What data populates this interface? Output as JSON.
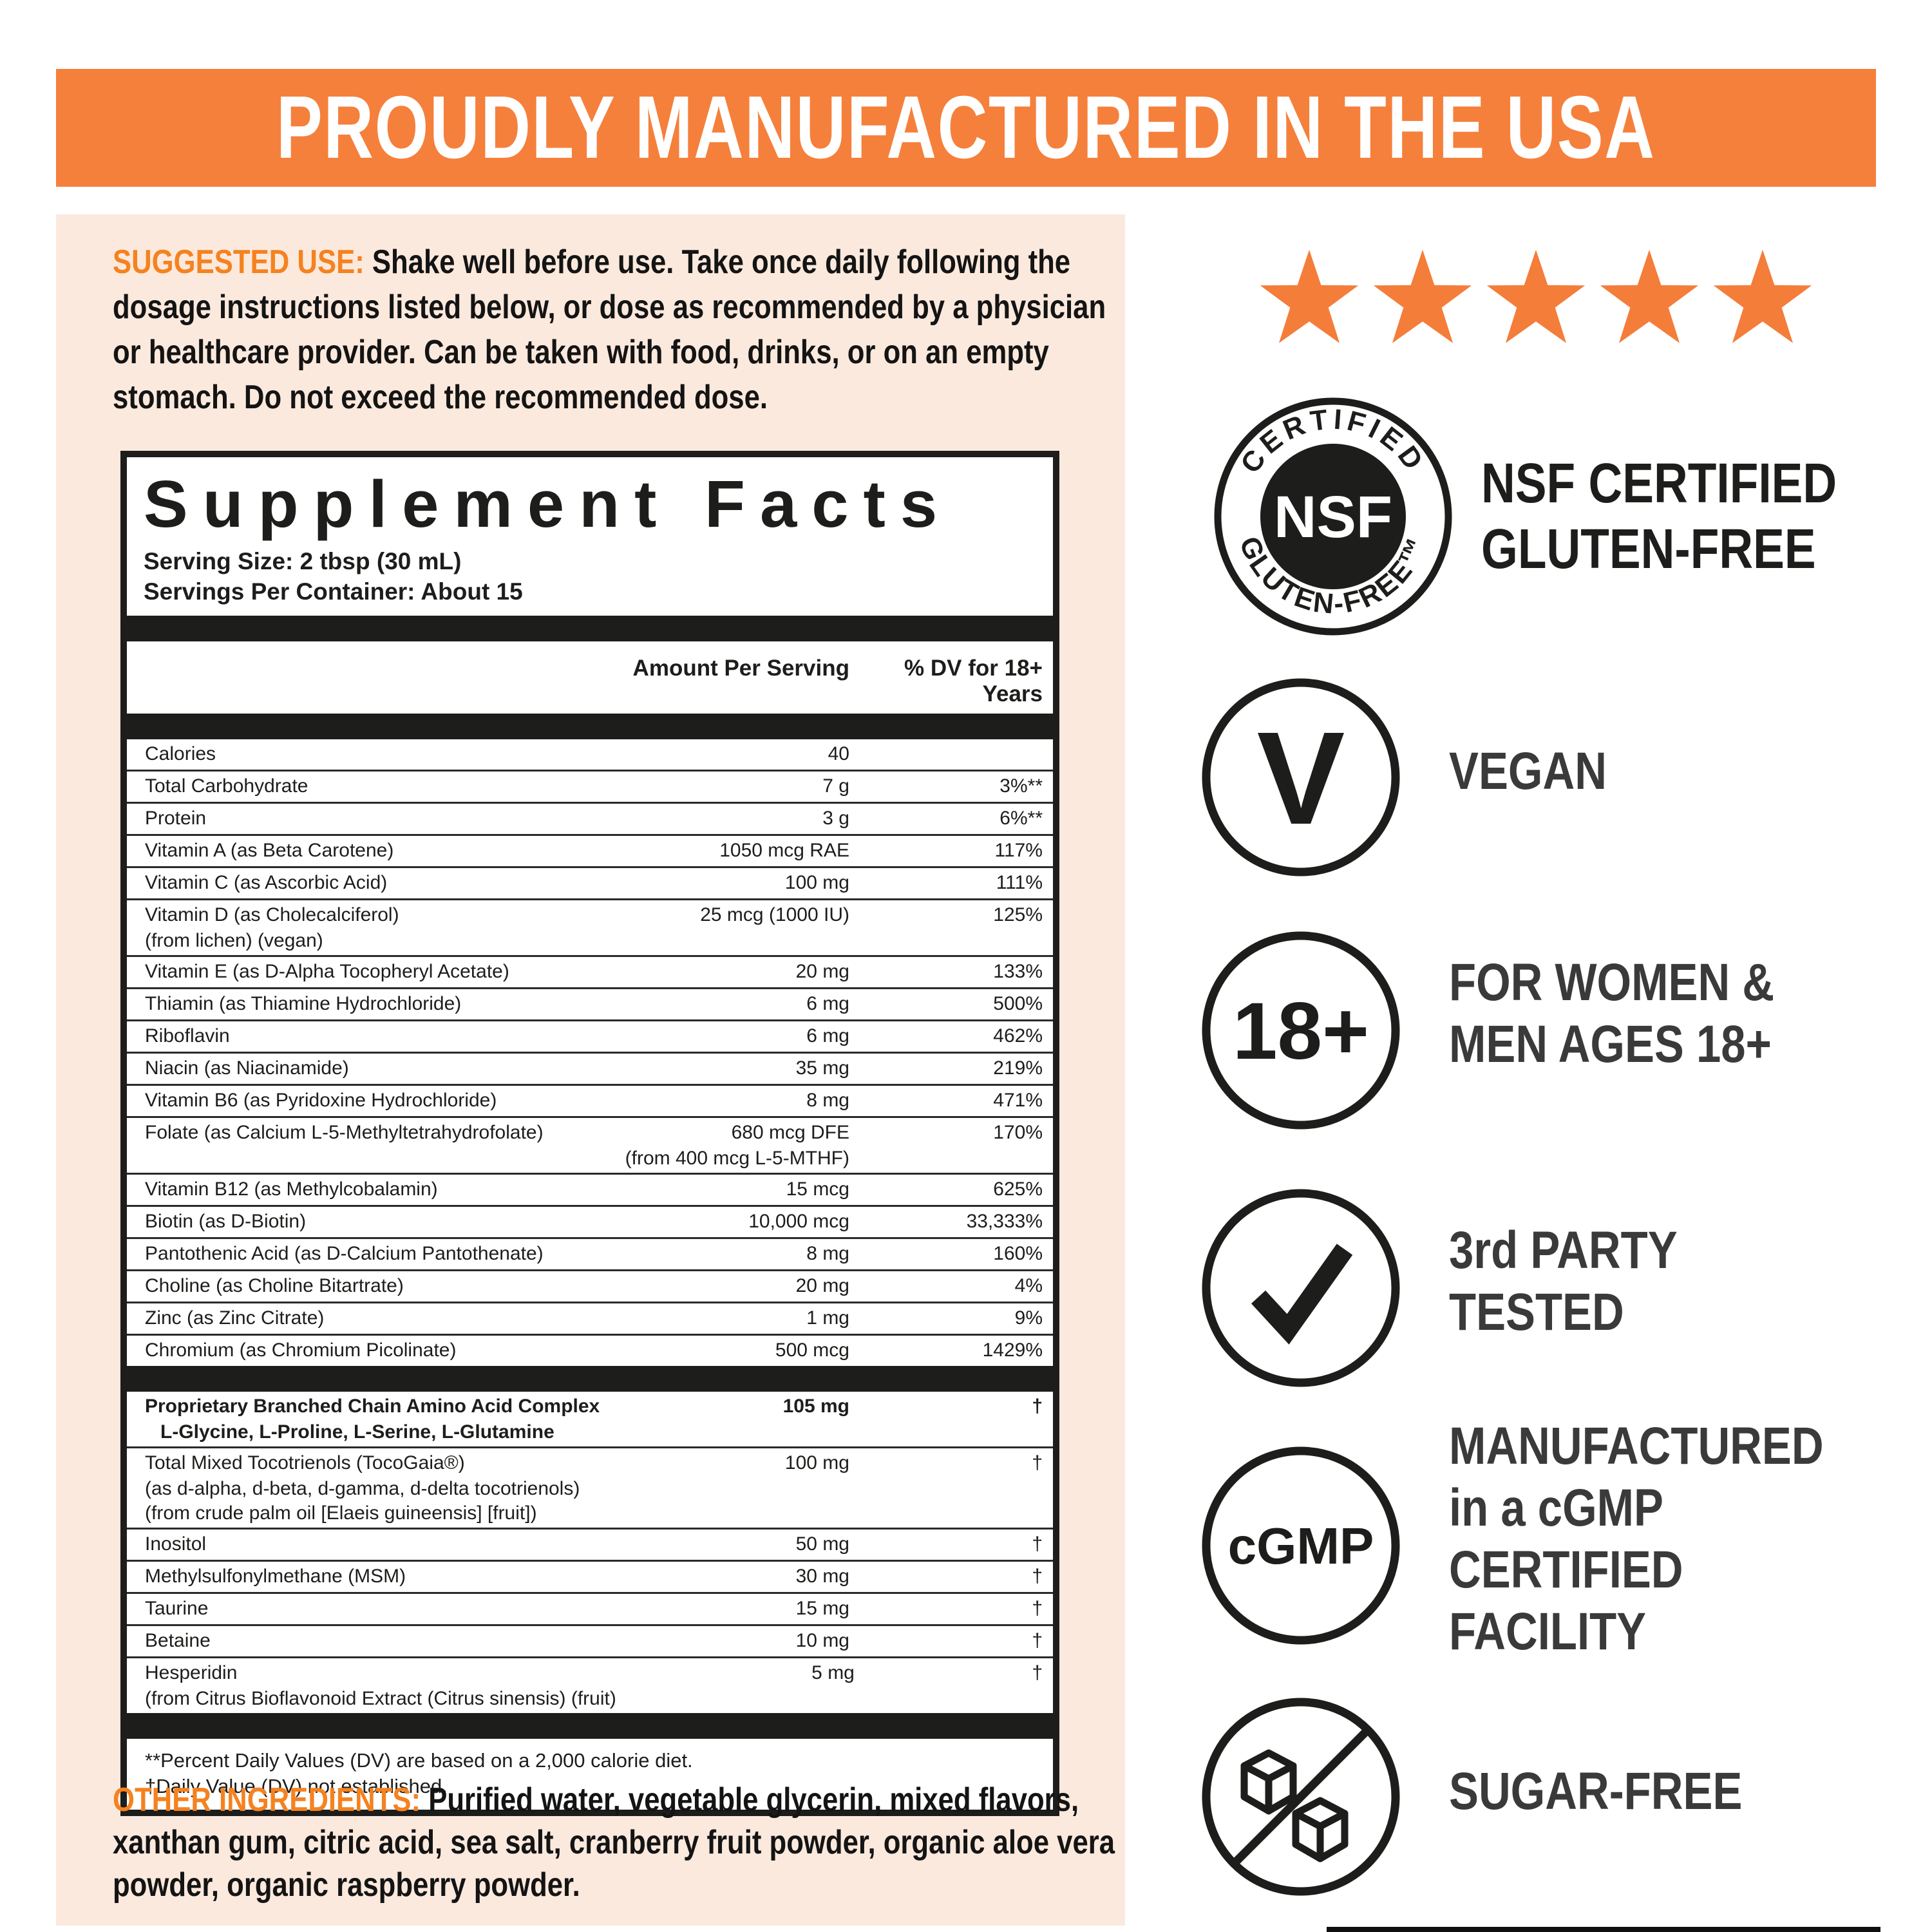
{
  "banner": {
    "text": "PROUDLY MANUFACTURED IN THE USA"
  },
  "colors": {
    "banner_orange": "#f5803c",
    "heading_orange": "#f5821f",
    "star_orange": "#f47d3a",
    "peach_background": "#fce9dd",
    "ink": "#1d1d1b"
  },
  "suggested_use": {
    "label": "SUGGESTED USE:",
    "text": " Shake well before use. Take once daily following the dosage instructions listed below, or dose as recommended by a physician or healthcare provider. Can be taken with food, drinks, or on an empty stomach. Do  not exceed the recommended dose."
  },
  "supplement_facts": {
    "title": "Supplement Facts",
    "serving_size": "Serving Size: 2 tbsp (30 mL)",
    "servings_per_container": "Servings Per Container: About 15",
    "col_amount": "Amount Per Serving",
    "col_dv": "% DV for 18+ Years",
    "rows": [
      {
        "name": "Calories",
        "amount": "40",
        "dv": ""
      },
      {
        "name": "Total Carbohydrate",
        "amount": "7 g",
        "dv": "3%**"
      },
      {
        "name": "Protein",
        "amount": "3 g",
        "dv": "6%**"
      },
      {
        "name": "Vitamin A (as Beta Carotene)",
        "amount": "1050 mcg RAE",
        "dv": "117%"
      },
      {
        "name": "Vitamin C (as Ascorbic Acid)",
        "amount": "100 mg",
        "dv": "111%"
      },
      {
        "name": "Vitamin D (as Cholecalciferol)",
        "name_subs": [
          "(from lichen) (vegan)"
        ],
        "amount": "25 mcg (1000 IU)",
        "dv": "125%"
      },
      {
        "name": "Vitamin E (as D-Alpha Tocopheryl Acetate)",
        "amount": "20 mg",
        "dv": "133%"
      },
      {
        "name": "Thiamin (as Thiamine Hydrochloride)",
        "amount": "6 mg",
        "dv": "500%"
      },
      {
        "name": "Riboflavin",
        "amount": "6 mg",
        "dv": "462%"
      },
      {
        "name": "Niacin (as Niacinamide)",
        "amount": "35 mg",
        "dv": "219%"
      },
      {
        "name": "Vitamin B6 (as Pyridoxine Hydrochloride)",
        "amount": "8 mg",
        "dv": "471%"
      },
      {
        "name": "Folate (as Calcium L-5-Methyltetrahydrofolate)",
        "amount": "680 mcg DFE",
        "amount_sub": "(from 400 mcg L-5-MTHF)",
        "dv": "170%"
      },
      {
        "name": "Vitamin B12 (as Methylcobalamin)",
        "amount": "15 mcg",
        "dv": "625%"
      },
      {
        "name": "Biotin (as D-Biotin)",
        "amount": "10,000 mcg",
        "dv": "33,333%"
      },
      {
        "name": "Pantothenic Acid (as D-Calcium Pantothenate)",
        "amount": "8 mg",
        "dv": "160%"
      },
      {
        "name": "Choline (as Choline Bitartrate)",
        "amount": "20 mg",
        "dv": "4%"
      },
      {
        "name": "Zinc (as Zinc Citrate)",
        "amount": "1 mg",
        "dv": "9%"
      },
      {
        "name": "Chromium (as Chromium Picolinate)",
        "amount": "500 mcg",
        "dv": "1429%"
      },
      {
        "type": "bar"
      },
      {
        "name": "Proprietary Branched Chain Amino Acid Complex",
        "bold": true,
        "name_subs": [
          "L-Glycine, L-Proline, L-Serine, L-Glutamine"
        ],
        "sub_indent": true,
        "amount": "105 mg",
        "dv": "†"
      },
      {
        "name": "Total Mixed Tocotrienols (TocoGaia®)",
        "name_subs": [
          "(as d-alpha, d-beta, d-gamma, d-delta tocotrienols)",
          "(from crude palm oil [Elaeis guineensis] [fruit])"
        ],
        "amount": "100 mg",
        "dv": "†"
      },
      {
        "name": "Inositol",
        "amount": "50 mg",
        "dv": "†"
      },
      {
        "name": "Methylsulfonylmethane (MSM)",
        "amount": "30 mg",
        "dv": "†"
      },
      {
        "name": "Taurine",
        "amount": "15 mg",
        "dv": "†"
      },
      {
        "name": "Betaine",
        "amount": "10 mg",
        "dv": "†"
      },
      {
        "name": "Hesperidin",
        "name_subs": [
          "(from Citrus Bioflavonoid Extract (Citrus sinensis) (fruit)"
        ],
        "amount": "5 mg",
        "dv": "†"
      },
      {
        "type": "bar"
      }
    ],
    "footnotes": [
      "**Percent Daily Values (DV) are based on a 2,000 calorie diet.",
      "†Daily Value (DV) not established."
    ]
  },
  "other_ingredients": {
    "label": "OTHER INGREDIENTS:",
    "text": " Purified water, vegetable glycerin, mixed flavors, xanthan gum, citric acid, sea salt, cranberry fruit powder, organic aloe vera powder, organic raspberry powder."
  },
  "badges": {
    "stars": {
      "count": 5
    },
    "nsf": {
      "arc_top": "CERTIFIED",
      "center": "NSF",
      "arc_bottom": "GLUTEN-FREE™",
      "label": "NSF CERTIFIED\nGLUTEN-FREE"
    },
    "vegan": {
      "icon_text": "V",
      "label": "VEGAN"
    },
    "age": {
      "icon_text": "18+",
      "label": "FOR WOMEN &\nMEN AGES 18+"
    },
    "tested": {
      "label": "3rd PARTY\nTESTED"
    },
    "cgmp": {
      "icon_text": "cGMP",
      "label": "MANUFACTURED\nin a cGMP\nCERTIFIED\nFACILITY"
    },
    "sugar_free": {
      "label": "SUGAR-FREE"
    }
  }
}
